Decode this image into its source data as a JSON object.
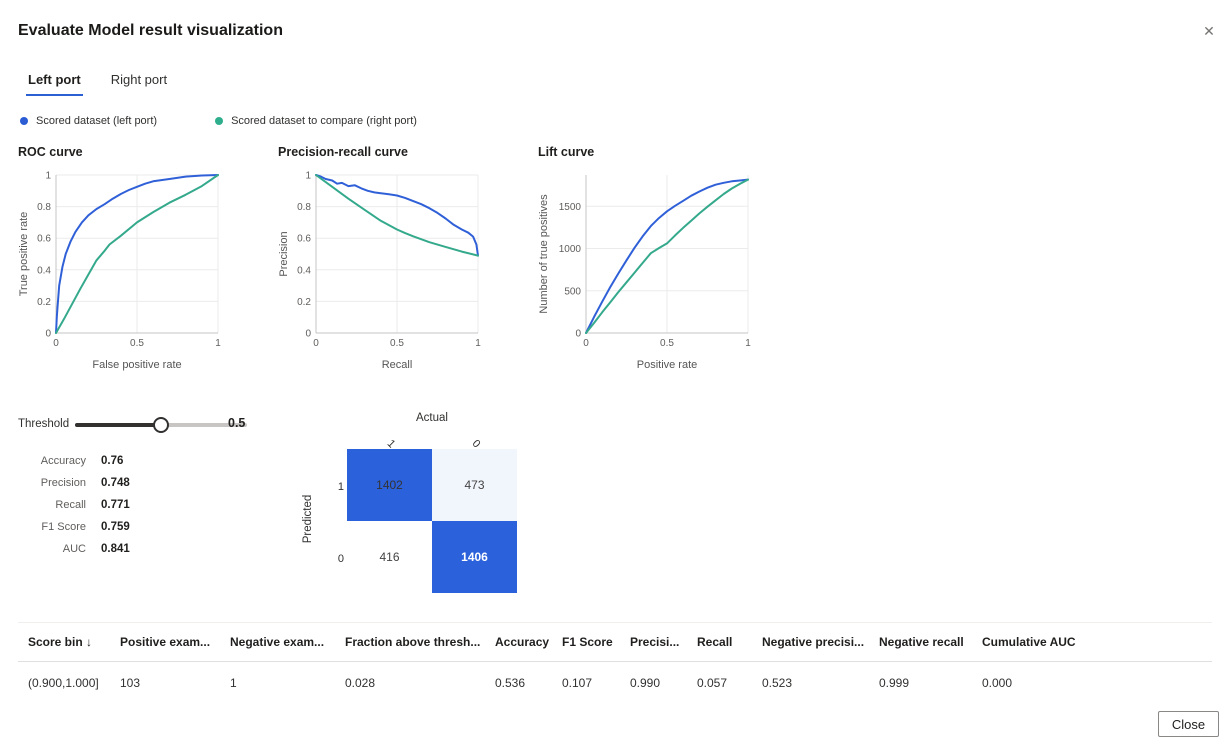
{
  "dialog": {
    "title": "Evaluate Model result visualization",
    "close_icon": "✕",
    "close_button_label": "Close"
  },
  "tabs": [
    {
      "label": "Left port",
      "active": true
    },
    {
      "label": "Right port",
      "active": false
    }
  ],
  "legend": [
    {
      "label": "Scored dataset (left port)",
      "color": "#2b5cd4"
    },
    {
      "label": "Scored dataset to compare (right port)",
      "color": "#2fae8d"
    }
  ],
  "threshold": {
    "label": "Threshold",
    "value": "0.5",
    "fraction": 0.5
  },
  "metrics": [
    {
      "label": "Accuracy",
      "value": "0.76"
    },
    {
      "label": "Precision",
      "value": "0.748"
    },
    {
      "label": "Recall",
      "value": "0.771"
    },
    {
      "label": "F1 Score",
      "value": "0.759"
    },
    {
      "label": "AUC",
      "value": "0.841"
    }
  ],
  "confusion_matrix": {
    "x_title": "Actual",
    "y_title": "Predicted",
    "col_labels": [
      "1",
      "0"
    ],
    "row_labels": [
      "1",
      "0"
    ],
    "cells": [
      [
        {
          "value": "1402",
          "bg": "#2b62dc",
          "text": "#333333",
          "bold": false
        },
        {
          "value": "473",
          "bg": "#f1f5fc",
          "text": "#444444",
          "bold": false
        }
      ],
      [
        {
          "value": "416",
          "bg": "#ffffff",
          "text": "#444444",
          "bold": false
        },
        {
          "value": "1406",
          "bg": "#2b62dc",
          "text": "#ffffff",
          "bold": true
        }
      ]
    ]
  },
  "chart_data": [
    {
      "type": "line",
      "title": "ROC curve",
      "xlabel": "False positive rate",
      "ylabel": "True positive rate",
      "xlim": [
        0,
        1
      ],
      "ylim": [
        0,
        1
      ],
      "xticks": [
        0,
        0.5,
        1
      ],
      "yticks": [
        0,
        0.2,
        0.4,
        0.6,
        0.8,
        1
      ],
      "grid": true,
      "legend_position": "top-external",
      "series": [
        {
          "name": "Scored dataset (left port)",
          "color": "#3060d8",
          "points": [
            [
              0,
              0
            ],
            [
              0.005,
              0.1
            ],
            [
              0.01,
              0.17
            ],
            [
              0.02,
              0.3
            ],
            [
              0.04,
              0.42
            ],
            [
              0.06,
              0.5
            ],
            [
              0.09,
              0.58
            ],
            [
              0.12,
              0.64
            ],
            [
              0.16,
              0.7
            ],
            [
              0.2,
              0.745
            ],
            [
              0.25,
              0.785
            ],
            [
              0.3,
              0.815
            ],
            [
              0.35,
              0.85
            ],
            [
              0.4,
              0.88
            ],
            [
              0.45,
              0.905
            ],
            [
              0.5,
              0.925
            ],
            [
              0.55,
              0.945
            ],
            [
              0.6,
              0.96
            ],
            [
              0.7,
              0.975
            ],
            [
              0.8,
              0.99
            ],
            [
              0.9,
              0.997
            ],
            [
              1,
              1
            ]
          ]
        },
        {
          "name": "Scored dataset to compare (right port)",
          "color": "#34a98c",
          "points": [
            [
              0,
              0
            ],
            [
              0.05,
              0.09
            ],
            [
              0.1,
              0.185
            ],
            [
              0.15,
              0.28
            ],
            [
              0.2,
              0.37
            ],
            [
              0.25,
              0.46
            ],
            [
              0.3,
              0.52
            ],
            [
              0.33,
              0.56
            ],
            [
              0.4,
              0.615
            ],
            [
              0.5,
              0.7
            ],
            [
              0.6,
              0.765
            ],
            [
              0.7,
              0.825
            ],
            [
              0.8,
              0.875
            ],
            [
              0.9,
              0.93
            ],
            [
              1,
              1
            ]
          ]
        }
      ]
    },
    {
      "type": "line",
      "title": "Precision-recall curve",
      "xlabel": "Recall",
      "ylabel": "Precision",
      "xlim": [
        0,
        1
      ],
      "ylim": [
        0,
        1
      ],
      "xticks": [
        0,
        0.5,
        1
      ],
      "yticks": [
        0,
        0.2,
        0.4,
        0.6,
        0.8,
        1
      ],
      "grid": true,
      "legend_position": "top-external",
      "series": [
        {
          "name": "Scored dataset (left port)",
          "color": "#3060d8",
          "points": [
            [
              0,
              1
            ],
            [
              0.03,
              0.99
            ],
            [
              0.06,
              0.975
            ],
            [
              0.1,
              0.965
            ],
            [
              0.13,
              0.945
            ],
            [
              0.16,
              0.95
            ],
            [
              0.2,
              0.93
            ],
            [
              0.24,
              0.935
            ],
            [
              0.28,
              0.915
            ],
            [
              0.32,
              0.9
            ],
            [
              0.36,
              0.89
            ],
            [
              0.4,
              0.885
            ],
            [
              0.45,
              0.878
            ],
            [
              0.5,
              0.87
            ],
            [
              0.55,
              0.855
            ],
            [
              0.6,
              0.835
            ],
            [
              0.65,
              0.815
            ],
            [
              0.7,
              0.79
            ],
            [
              0.75,
              0.76
            ],
            [
              0.8,
              0.725
            ],
            [
              0.85,
              0.685
            ],
            [
              0.9,
              0.655
            ],
            [
              0.94,
              0.635
            ],
            [
              0.97,
              0.61
            ],
            [
              0.99,
              0.56
            ],
            [
              1,
              0.49
            ]
          ]
        },
        {
          "name": "Scored dataset to compare (right port)",
          "color": "#34a98c",
          "points": [
            [
              0,
              1
            ],
            [
              0.1,
              0.925
            ],
            [
              0.2,
              0.85
            ],
            [
              0.3,
              0.78
            ],
            [
              0.4,
              0.71
            ],
            [
              0.5,
              0.655
            ],
            [
              0.55,
              0.632
            ],
            [
              0.6,
              0.612
            ],
            [
              0.7,
              0.575
            ],
            [
              0.8,
              0.545
            ],
            [
              0.9,
              0.515
            ],
            [
              1,
              0.49
            ]
          ]
        }
      ]
    },
    {
      "type": "line",
      "title": "Lift curve",
      "xlabel": "Positive rate",
      "ylabel": "Number of true positives",
      "xlim": [
        0,
        1
      ],
      "ylim": [
        0,
        1870
      ],
      "xticks": [
        0,
        0.5,
        1
      ],
      "yticks": [
        0,
        500,
        1000,
        1500
      ],
      "grid": true,
      "legend_position": "top-external",
      "series": [
        {
          "name": "Scored dataset (left port)",
          "color": "#3060d8",
          "points": [
            [
              0,
              0
            ],
            [
              0.05,
              190
            ],
            [
              0.1,
              370
            ],
            [
              0.15,
              545
            ],
            [
              0.2,
              705
            ],
            [
              0.25,
              860
            ],
            [
              0.3,
              1010
            ],
            [
              0.35,
              1145
            ],
            [
              0.4,
              1265
            ],
            [
              0.45,
              1360
            ],
            [
              0.5,
              1440
            ],
            [
              0.55,
              1505
            ],
            [
              0.6,
              1565
            ],
            [
              0.65,
              1625
            ],
            [
              0.7,
              1675
            ],
            [
              0.75,
              1720
            ],
            [
              0.8,
              1755
            ],
            [
              0.85,
              1778
            ],
            [
              0.9,
              1795
            ],
            [
              0.95,
              1805
            ],
            [
              1,
              1815
            ]
          ]
        },
        {
          "name": "Scored dataset to compare (right port)",
          "color": "#34a98c",
          "points": [
            [
              0,
              0
            ],
            [
              0.05,
              120
            ],
            [
              0.1,
              245
            ],
            [
              0.15,
              365
            ],
            [
              0.2,
              485
            ],
            [
              0.25,
              600
            ],
            [
              0.3,
              715
            ],
            [
              0.35,
              830
            ],
            [
              0.4,
              945
            ],
            [
              0.45,
              1005
            ],
            [
              0.5,
              1060
            ],
            [
              0.55,
              1155
            ],
            [
              0.6,
              1245
            ],
            [
              0.65,
              1330
            ],
            [
              0.7,
              1415
            ],
            [
              0.75,
              1495
            ],
            [
              0.8,
              1570
            ],
            [
              0.85,
              1645
            ],
            [
              0.9,
              1710
            ],
            [
              0.95,
              1765
            ],
            [
              1,
              1815
            ]
          ]
        }
      ]
    }
  ],
  "table": {
    "columns": [
      "Score bin ↓",
      "Positive exam...",
      "Negative exam...",
      "Fraction above thresh...",
      "Accuracy",
      "F1 Score",
      "Precisi...",
      "Recall",
      "Negative precisi...",
      "Negative recall",
      "Cumulative AUC"
    ],
    "rows": [
      [
        "(0.900,1.000]",
        "103",
        "1",
        "0.028",
        "0.536",
        "0.107",
        "0.990",
        "0.057",
        "0.523",
        "0.999",
        "0.000"
      ]
    ]
  }
}
